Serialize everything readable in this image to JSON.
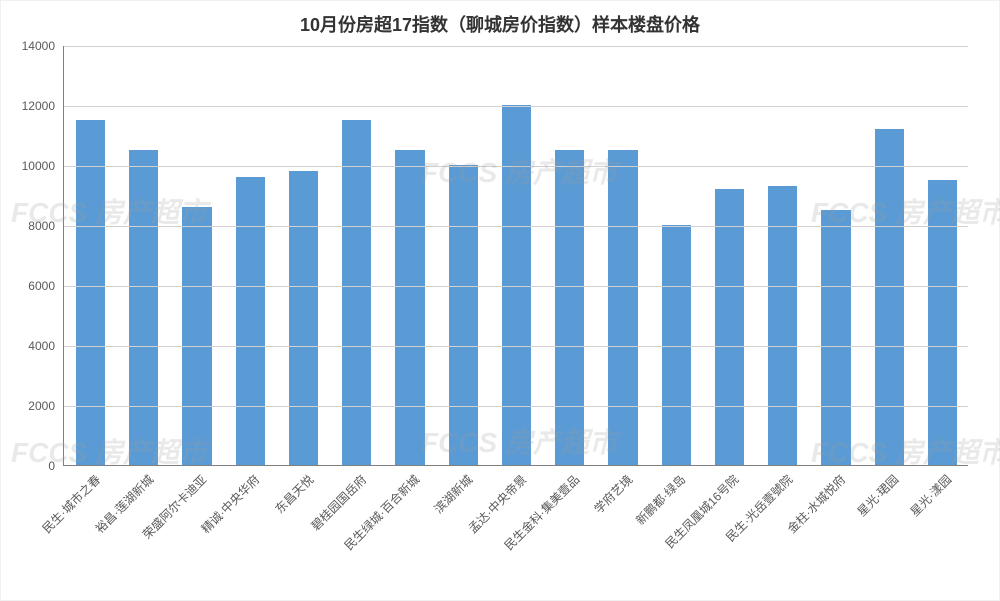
{
  "chart": {
    "type": "bar",
    "title": "10月份房超17指数（聊城房价指数）样本楼盘价格",
    "title_fontsize": 18,
    "title_color": "#333333",
    "categories": [
      "民生·城市之春",
      "裕昌·莲湖新城",
      "荣盛阿尔卡迪亚",
      "精诚·中央华府",
      "东昌天悦",
      "碧桂园国岳府",
      "民生绿城·百合新城",
      "滨湖新城",
      "孟达·中央帝景",
      "民生金科·集美壹品",
      "学府艺境",
      "新鹏都·绿岛",
      "民生凤凰城16号院",
      "民生·光岳壹號院",
      "金柱·水城悦府",
      "星光·珺园",
      "星光·漾园"
    ],
    "values": [
      11500,
      10500,
      8600,
      9600,
      9800,
      11500,
      10500,
      10000,
      12000,
      10500,
      10500,
      8000,
      9200,
      9300,
      8500,
      11200,
      9500
    ],
    "bar_color": "#5b9bd5",
    "background_color": "#ffffff",
    "grid_color": "#d0d0d0",
    "axis_color": "#808080",
    "label_color": "#595959",
    "label_fontsize": 12,
    "ylim": [
      0,
      14000
    ],
    "ytick_step": 2000,
    "yticks": [
      0,
      2000,
      4000,
      6000,
      8000,
      10000,
      12000,
      14000
    ],
    "bar_width_ratio": 0.55,
    "watermark_text": "FCCS 房产超市",
    "watermark_color": "rgba(153,153,153,0.22)"
  }
}
